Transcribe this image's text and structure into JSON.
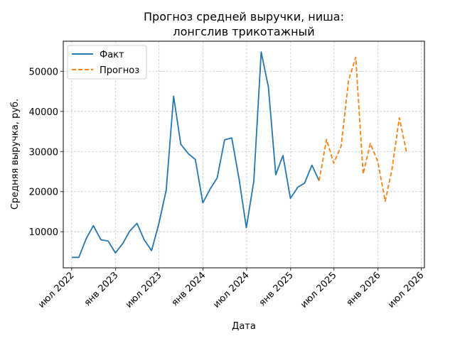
{
  "chart_data": {
    "type": "line",
    "title_line1": "Прогноз средней выручки, ниша:",
    "title_line2": "лонгслив трикотажный",
    "xlabel": "Дата",
    "ylabel": "Средняя выручка, руб.",
    "grid": true,
    "legend_position": "top-left",
    "xlim": [
      "2022-05-27",
      "2026-07-14"
    ],
    "ylim": [
      1000,
      57500
    ],
    "x_ticks": [
      {
        "date": "2022-07-01",
        "label": "июл 2022"
      },
      {
        "date": "2023-01-01",
        "label": "янв 2023"
      },
      {
        "date": "2023-07-01",
        "label": "июл 2023"
      },
      {
        "date": "2024-01-01",
        "label": "янв 2024"
      },
      {
        "date": "2024-07-01",
        "label": "июл 2024"
      },
      {
        "date": "2025-01-01",
        "label": "янв 2025"
      },
      {
        "date": "2025-07-01",
        "label": "июл 2025"
      },
      {
        "date": "2026-01-01",
        "label": "янв 2026"
      },
      {
        "date": "2026-07-01",
        "label": "июл 2026"
      }
    ],
    "y_ticks": [
      {
        "value": 10000,
        "label": "10000"
      },
      {
        "value": 20000,
        "label": "20000"
      },
      {
        "value": 30000,
        "label": "30000"
      },
      {
        "value": 40000,
        "label": "40000"
      },
      {
        "value": 50000,
        "label": "50000"
      }
    ],
    "series": [
      {
        "name": "Факт",
        "color": "#1f77b4",
        "style": "solid",
        "points": [
          [
            "2022-07-01",
            3600
          ],
          [
            "2022-07-31",
            3600
          ],
          [
            "2022-08-31",
            8300
          ],
          [
            "2022-09-30",
            11500
          ],
          [
            "2022-10-31",
            8000
          ],
          [
            "2022-11-30",
            7700
          ],
          [
            "2022-12-31",
            4700
          ],
          [
            "2023-01-31",
            7100
          ],
          [
            "2023-02-28",
            10100
          ],
          [
            "2023-03-31",
            12100
          ],
          [
            "2023-04-30",
            8000
          ],
          [
            "2023-05-31",
            5300
          ],
          [
            "2023-06-30",
            11900
          ],
          [
            "2023-07-31",
            20400
          ],
          [
            "2023-08-31",
            43800
          ],
          [
            "2023-09-30",
            31800
          ],
          [
            "2023-10-31",
            29500
          ],
          [
            "2023-11-30",
            28000
          ],
          [
            "2023-12-31",
            17200
          ],
          [
            "2024-01-31",
            20700
          ],
          [
            "2024-02-29",
            23400
          ],
          [
            "2024-03-31",
            32900
          ],
          [
            "2024-04-30",
            33400
          ],
          [
            "2024-05-31",
            23000
          ],
          [
            "2024-06-30",
            11000
          ],
          [
            "2024-07-31",
            22600
          ],
          [
            "2024-08-31",
            54800
          ],
          [
            "2024-09-30",
            46100
          ],
          [
            "2024-10-31",
            24200
          ],
          [
            "2024-11-30",
            29000
          ],
          [
            "2024-12-31",
            18300
          ],
          [
            "2025-01-31",
            21100
          ],
          [
            "2025-02-28",
            22100
          ],
          [
            "2025-03-31",
            26600
          ],
          [
            "2025-04-30",
            22700
          ]
        ]
      },
      {
        "name": "Прогноз",
        "color": "#ff7f0e",
        "style": "dashed",
        "points": [
          [
            "2025-04-30",
            22700
          ],
          [
            "2025-05-31",
            33000
          ],
          [
            "2025-06-30",
            27100
          ],
          [
            "2025-07-31",
            31300
          ],
          [
            "2025-08-31",
            47800
          ],
          [
            "2025-09-30",
            53500
          ],
          [
            "2025-10-31",
            24400
          ],
          [
            "2025-11-30",
            32000
          ],
          [
            "2025-12-31",
            27500
          ],
          [
            "2026-01-31",
            17600
          ],
          [
            "2026-02-28",
            25400
          ],
          [
            "2026-03-31",
            38400
          ],
          [
            "2026-04-30",
            29800
          ]
        ]
      }
    ]
  }
}
